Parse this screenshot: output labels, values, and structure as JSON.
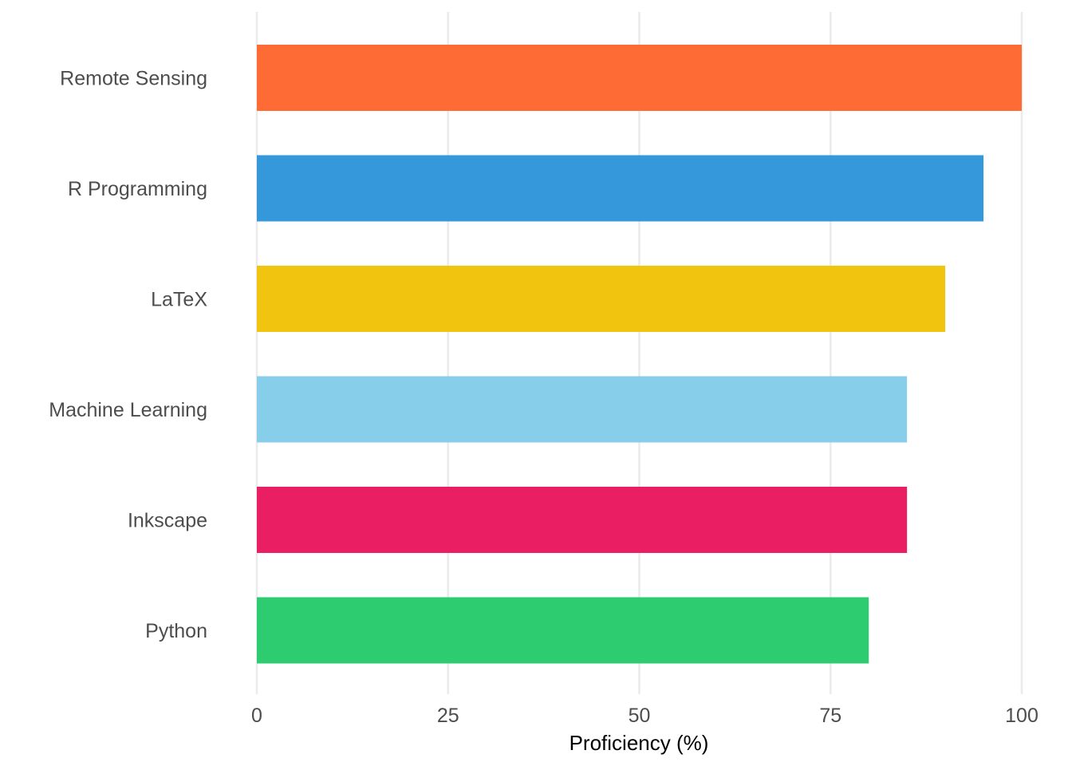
{
  "chart_data": {
    "type": "bar",
    "orientation": "horizontal",
    "title": "",
    "xlabel": "Proficiency (%)",
    "ylabel": "",
    "xlim": [
      0,
      100
    ],
    "x_ticks": [
      0,
      25,
      50,
      75,
      100
    ],
    "grid": true,
    "legend": "none",
    "categories": [
      "Remote Sensing",
      "R Programming",
      "LaTeX",
      "Machine Learning",
      "Inkscape",
      "Python"
    ],
    "values": [
      100,
      95,
      90,
      85,
      85,
      80
    ],
    "colors": [
      "#FF6B35",
      "#3498DB",
      "#F1C40F",
      "#87CEEB",
      "#E91E63",
      "#2ECC71"
    ]
  }
}
